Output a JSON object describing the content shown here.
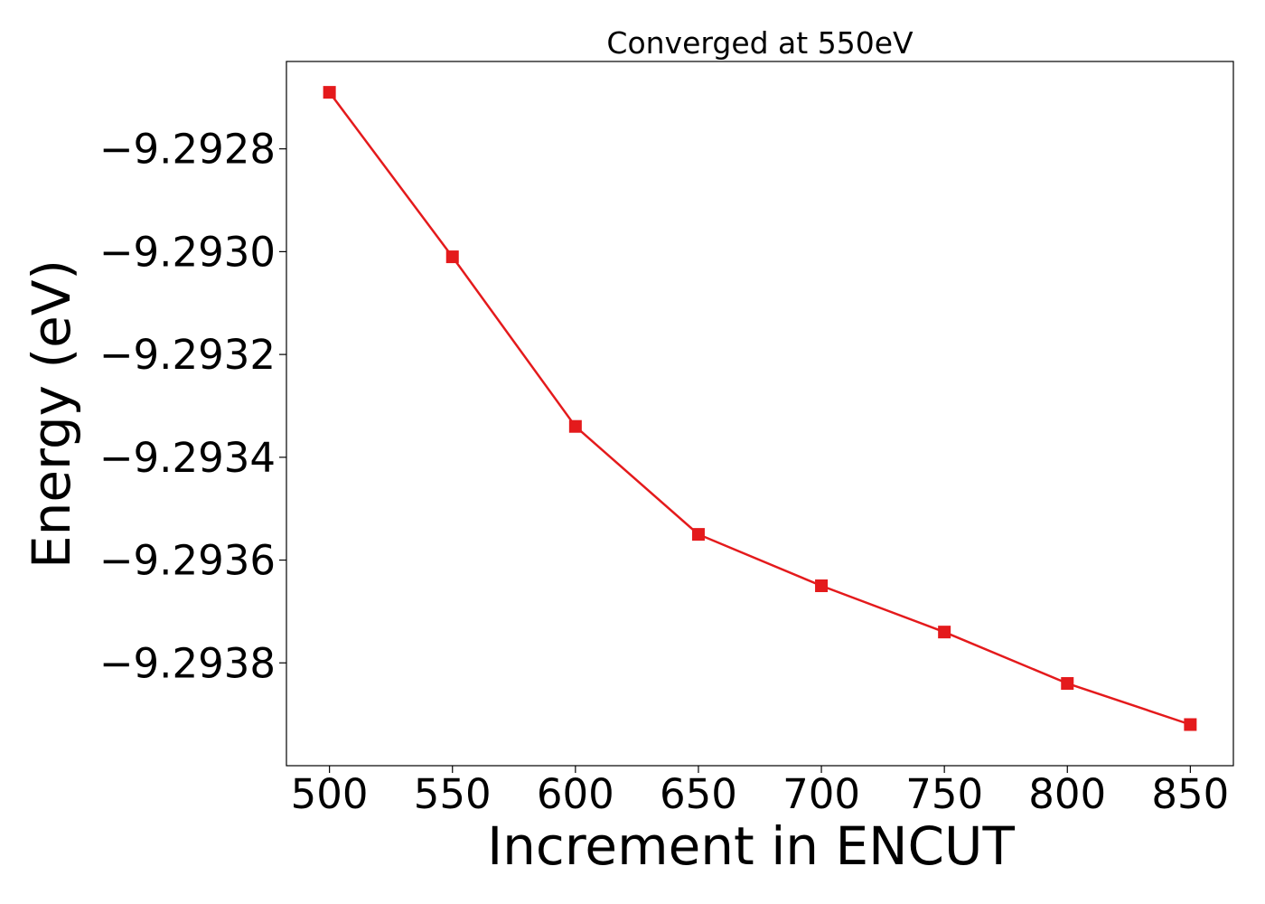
{
  "chart_data": {
    "type": "line",
    "title": "Converged at 550eV",
    "xlabel": "Increment in ENCUT",
    "ylabel": "Energy (eV)",
    "x": [
      500,
      550,
      600,
      650,
      700,
      750,
      800,
      850
    ],
    "series": [
      {
        "values": [
          -9.29269,
          -9.29301,
          -9.29334,
          -9.29355,
          -9.29365,
          -9.29374,
          -9.29384,
          -9.29392
        ],
        "color": "#e41a1c",
        "marker": "square"
      }
    ],
    "xlim": [
      482.5,
      867.5
    ],
    "ylim": [
      -9.294,
      -9.29263
    ],
    "xticks": [
      500,
      550,
      600,
      650,
      700,
      750,
      800,
      850
    ],
    "xtick_labels": [
      "500",
      "550",
      "600",
      "650",
      "700",
      "750",
      "800",
      "850"
    ],
    "yticks": [
      -9.2928,
      -9.293,
      -9.2932,
      -9.2934,
      -9.2936,
      -9.2938
    ],
    "ytick_labels": [
      "−9.2928",
      "−9.2930",
      "−9.2932",
      "−9.2934",
      "−9.2936",
      "−9.2938"
    ],
    "grid": false,
    "legend": "none"
  }
}
